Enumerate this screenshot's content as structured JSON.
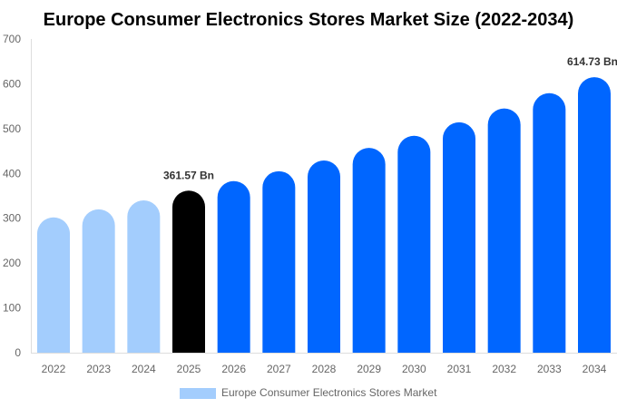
{
  "chart_data": {
    "type": "bar",
    "title": "Europe Consumer Electronics Stores Market Size (2022-2034)",
    "categories": [
      "2022",
      "2023",
      "2024",
      "2025",
      "2026",
      "2027",
      "2028",
      "2029",
      "2030",
      "2031",
      "2032",
      "2033",
      "2034"
    ],
    "series": [
      {
        "name": "Europe Consumer Electronics Stores Market",
        "values": [
          302,
          320,
          340,
          361.57,
          383,
          405,
          429,
          457,
          484,
          514,
          545,
          579,
          614.73
        ]
      }
    ],
    "data_labels": {
      "3": "361.57 Bn",
      "12": "614.73 Bn"
    },
    "ylim": [
      0,
      700
    ],
    "yticks": [
      0,
      100,
      200,
      300,
      400,
      500,
      600,
      700
    ],
    "xlabel": "",
    "ylabel": "",
    "grid": false,
    "legend_position": "bottom",
    "colors": {
      "historic": "#a3cdfd",
      "current": "#000000",
      "forecast": "#0066ff"
    }
  }
}
